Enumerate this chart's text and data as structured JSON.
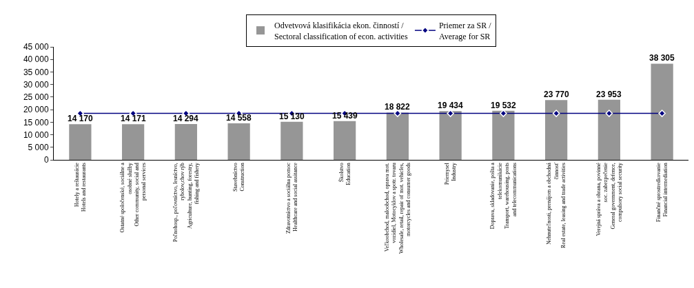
{
  "chart_data": {
    "type": "bar",
    "categories": [
      "Hotely a reštaurácie\nHotels and restaurants",
      "Ostatné spoločenské, sociálne a\nosobné služby\nOther community, social and\npersonal services",
      "Poľnohosp., poľovníctvo, lesníctvo,\nrybolov,chov rýb\nAgriculture, hunting, forestry,\nfishing and fishery",
      "Stavebníctvo\nConstruction",
      "Zdravotníctvo a sociálna pomoc\nHealthcare and social assitance",
      "Školstvo\nEducation",
      "Veľkoobchod, maloobchod, oprava mot.\nvozidiel, Motocyklov a spotr. tovaru\nWholesale, retail, repair of mot. vehicles,\nmotorcycles and consumer goods",
      "Priemysel\nIndustry",
      "Doprava, skladovanie, pošta a\ntelekomunikácie\nTransport, warehousing, posts\nand telecommunications",
      "Nehnuteľnosti, prenájom a obchodná\nčinnosť\nReal estate, leasing and trade activities",
      "Verejná správa a obrana, povinné\nsoc. zabezpečenie\nGeneral government, defence,\ncompulsory social security",
      "Finančné sprostredkovanie\nFinancial intermediation"
    ],
    "series": [
      {
        "name": "Odvetvová klasifikácia ekon. činností /\nSectoral classification of econ. activities",
        "color": "#969696",
        "values": [
          14170,
          14171,
          14294,
          14558,
          15130,
          15439,
          18822,
          19434,
          19532,
          23770,
          23953,
          38305
        ],
        "value_labels": [
          "14 170",
          "14 171",
          "14 294",
          "14 558",
          "15 130",
          "15 439",
          "18 822",
          "19 434",
          "19 532",
          "23 770",
          "23 953",
          "38 305"
        ]
      },
      {
        "name": "Priemer za SR /\nAverage for SR",
        "type": "line",
        "color": "#000080",
        "marker": "diamond",
        "values": [
          18500,
          18500,
          18500,
          18500,
          18500,
          18500,
          18500,
          18500,
          18500,
          18500,
          18500,
          18500
        ]
      }
    ],
    "ylim": [
      0,
      45000
    ],
    "yticks": [
      {
        "value": 0,
        "label": "0"
      },
      {
        "value": 5000,
        "label": "5 000"
      },
      {
        "value": 10000,
        "label": "10 000"
      },
      {
        "value": 15000,
        "label": "15 000"
      },
      {
        "value": 20000,
        "label": "20 000"
      },
      {
        "value": 25000,
        "label": "25 000"
      },
      {
        "value": 30000,
        "label": "30 000"
      },
      {
        "value": 35000,
        "label": "35 000"
      },
      {
        "value": 40000,
        "label": "40 000"
      },
      {
        "value": 45000,
        "label": "45 000"
      }
    ],
    "grid": false,
    "legend": "top"
  }
}
